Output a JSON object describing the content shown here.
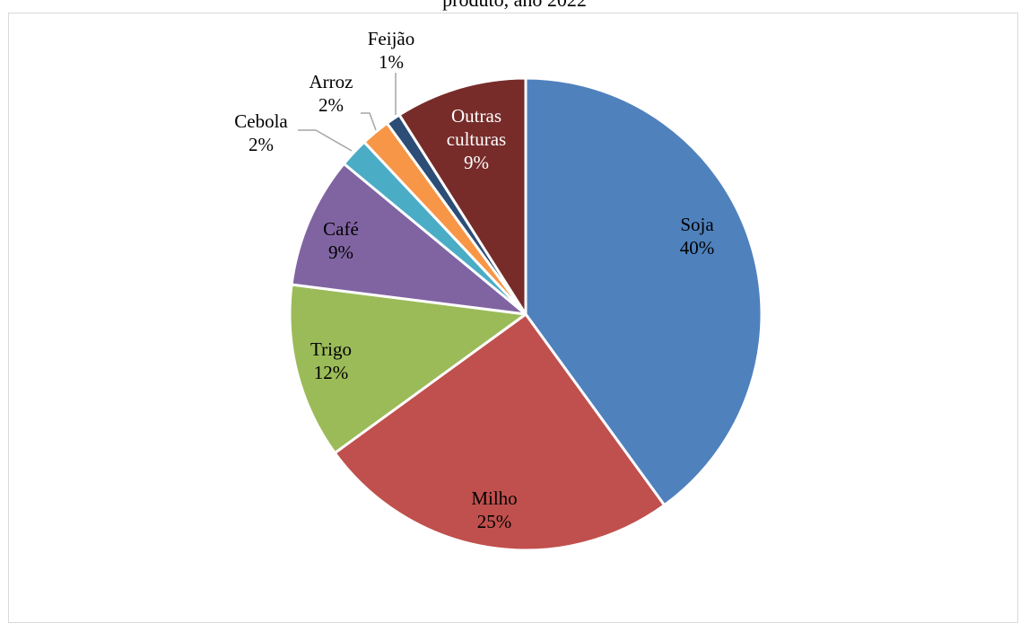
{
  "chart_data": {
    "type": "pie",
    "title": "produto, ano 2022",
    "categories": [
      "Soja",
      "Milho",
      "Trigo",
      "Café",
      "Cebola",
      "Arroz",
      "Feijão",
      "Outras culturas"
    ],
    "values": [
      40,
      25,
      12,
      9,
      2,
      2,
      1,
      9
    ],
    "value_labels": [
      "40%",
      "25%",
      "12%",
      "9%",
      "2%",
      "2%",
      "1%",
      "9%"
    ],
    "label_lines": [
      [
        "Soja",
        "40%"
      ],
      [
        "Milho",
        "25%"
      ],
      [
        "Trigo",
        "12%"
      ],
      [
        "Café",
        "9%"
      ],
      [
        "Cebola",
        "2%"
      ],
      [
        "Arroz",
        "2%"
      ],
      [
        "Feijão",
        "1%"
      ],
      [
        "Outras",
        "culturas",
        "9%"
      ]
    ],
    "colors": [
      "#4F81BD",
      "#C0504D",
      "#9BBB59",
      "#8064A2",
      "#4BACC6",
      "#F79646",
      "#2C4D75",
      "#772C2A"
    ],
    "label_colors": [
      "#000000",
      "#000000",
      "#000000",
      "#000000",
      "#000000",
      "#000000",
      "#000000",
      "#ffffff"
    ],
    "legend": "none",
    "grid": false
  }
}
